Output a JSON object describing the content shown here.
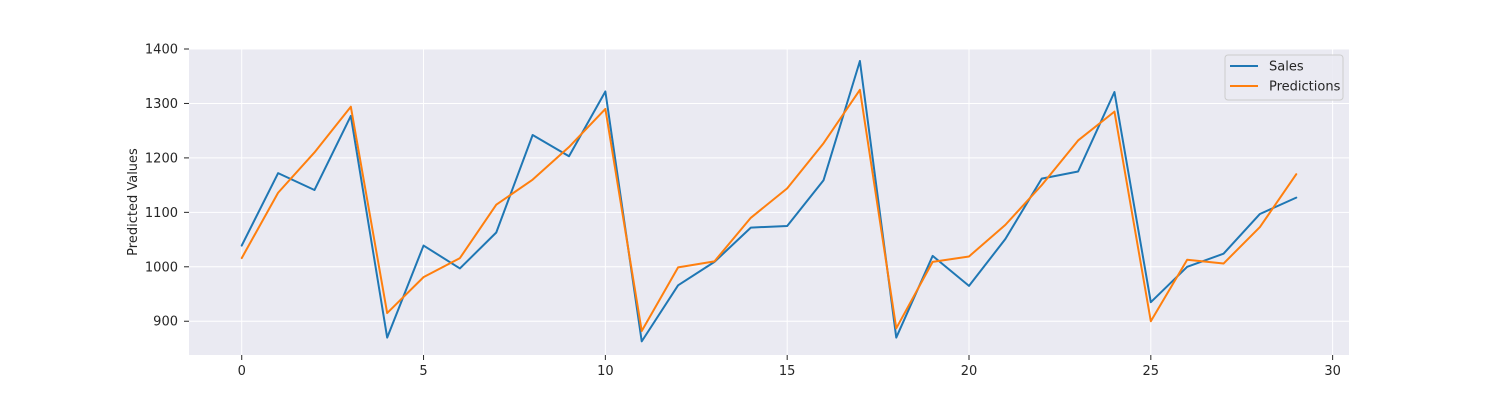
{
  "chart_data": {
    "type": "line",
    "title": "",
    "xlabel": "",
    "ylabel": "Predicted Values",
    "xlim": [
      -1.45,
      30.45
    ],
    "ylim": [
      838,
      1400
    ],
    "xticks": [
      0,
      5,
      10,
      15,
      20,
      25,
      30
    ],
    "yticks": [
      900,
      1000,
      1100,
      1200,
      1300,
      1400
    ],
    "grid": true,
    "legend_position": "top-right",
    "x": [
      0,
      1,
      2,
      3,
      4,
      5,
      6,
      7,
      8,
      9,
      10,
      11,
      12,
      13,
      14,
      15,
      16,
      17,
      18,
      19,
      20,
      21,
      22,
      23,
      24,
      25,
      26,
      27,
      28,
      29
    ],
    "series": [
      {
        "name": "Sales",
        "color": "#1f77b4",
        "values": [
          1039,
          1172,
          1141,
          1277,
          870,
          1039,
          997,
          1063,
          1242,
          1203,
          1322,
          863,
          966,
          1009,
          1072,
          1075,
          1159,
          1378,
          870,
          1020,
          965,
          1051,
          1162,
          1175,
          1321,
          935,
          1000,
          1024,
          1097,
          1127
        ]
      },
      {
        "name": "Predictions",
        "color": "#ff7f0e",
        "values": [
          1016,
          1136,
          1210,
          1294,
          915,
          981,
          1016,
          1114,
          1160,
          1220,
          1290,
          882,
          999,
          1010,
          1090,
          1144,
          1227,
          1325,
          887,
          1009,
          1019,
          1077,
          1150,
          1232,
          1285,
          900,
          1013,
          1006,
          1073,
          1170
        ]
      }
    ]
  }
}
